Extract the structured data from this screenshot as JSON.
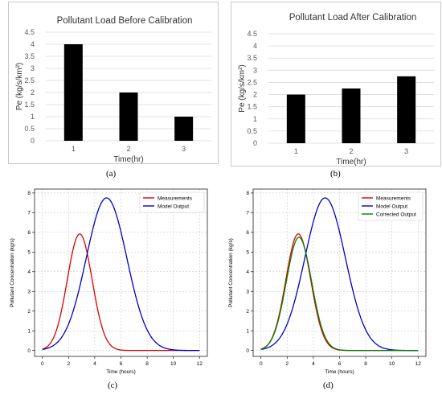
{
  "chart_data": [
    {
      "id": "a",
      "type": "bar",
      "title": "Pollutant Load Before Calibration",
      "xlabel": "Time(hr)",
      "ylabel": "Pe (kg/s/km²)",
      "categories": [
        "1",
        "2",
        "3"
      ],
      "values": [
        4,
        2,
        1
      ],
      "ylim": [
        0,
        4.5
      ],
      "yticks": [
        "0",
        "0.5",
        "1",
        "1.5",
        "2",
        "2.5",
        "3",
        "3.5",
        "4",
        "4.5"
      ],
      "grid": true,
      "bar_color": "#000000",
      "caption": "(a)"
    },
    {
      "id": "b",
      "type": "bar",
      "title": "Pollutant Load After Calibration",
      "xlabel": "Time(hr)",
      "ylabel": "Pe (kg/s/km²)",
      "categories": [
        "1",
        "2",
        "3"
      ],
      "values": [
        2,
        2.25,
        2.75
      ],
      "ylim": [
        0,
        4.5
      ],
      "yticks": [
        "0",
        "0.5",
        "1",
        "1.5",
        "2",
        "2.5",
        "3",
        "3.5",
        "4",
        "4.5"
      ],
      "grid": true,
      "bar_color": "#000000",
      "caption": "(b)"
    },
    {
      "id": "c",
      "type": "line",
      "xlabel": "Time (hours)",
      "ylabel": "Pollutant Concentration (kg/s)",
      "xlim": [
        -0.6,
        12.6
      ],
      "ylim": [
        -0.3,
        8.2
      ],
      "xticks": [
        0,
        2,
        4,
        6,
        8,
        10,
        12
      ],
      "yticks": [
        0,
        1,
        2,
        3,
        4,
        5,
        6,
        7,
        8
      ],
      "grid": true,
      "legend": "top-right",
      "series": [
        {
          "name": "Measurements",
          "color": "#dd0000",
          "peak_x": 2.85,
          "peak_y": 5.92,
          "sigma": 0.95
        },
        {
          "name": "Model Output",
          "color": "#0000cc",
          "peak_x": 4.9,
          "peak_y": 7.75,
          "sigma": 1.55
        }
      ],
      "caption": "(c)"
    },
    {
      "id": "d",
      "type": "line",
      "xlabel": "Time (hours)",
      "ylabel": "Pollutant Concentration (kg/s)",
      "xlim": [
        -0.6,
        12.6
      ],
      "ylim": [
        -0.3,
        8.2
      ],
      "xticks": [
        0,
        2,
        4,
        6,
        8,
        10,
        12
      ],
      "yticks": [
        0,
        1,
        2,
        3,
        4,
        5,
        6,
        7,
        8
      ],
      "grid": true,
      "legend": "top-right",
      "series": [
        {
          "name": "Measurements",
          "color": "#dd0000",
          "peak_x": 2.85,
          "peak_y": 5.92,
          "sigma": 0.95
        },
        {
          "name": "Model Output",
          "color": "#0000cc",
          "peak_x": 4.9,
          "peak_y": 7.75,
          "sigma": 1.55
        },
        {
          "name": "Corrected Output",
          "color": "#008000",
          "peak_x": 2.9,
          "peak_y": 5.75,
          "sigma": 0.97
        }
      ],
      "caption": "(d)"
    }
  ]
}
